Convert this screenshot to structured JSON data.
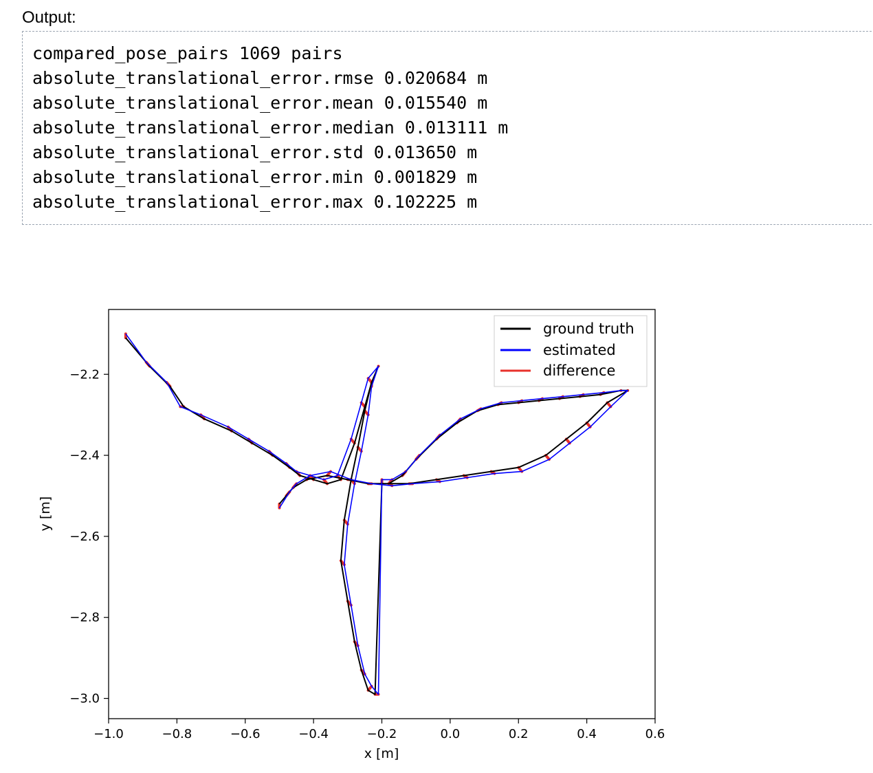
{
  "output_label": "Output:",
  "output_lines": [
    "compared_pose_pairs 1069 pairs",
    "absolute_translational_error.rmse 0.020684 m",
    "absolute_translational_error.mean 0.015540 m",
    "absolute_translational_error.median 0.013111 m",
    "absolute_translational_error.std 0.013650 m",
    "absolute_translational_error.min 0.001829 m",
    "absolute_translational_error.max 0.102225 m"
  ],
  "chart_data": {
    "type": "line",
    "xlabel": "x [m]",
    "ylabel": "y [m]",
    "xlim": [
      -1.0,
      0.6
    ],
    "ylim": [
      -3.05,
      -2.04
    ],
    "xticks": [
      -1.0,
      -0.8,
      -0.6,
      -0.4,
      -0.2,
      0.0,
      0.2,
      0.4,
      0.6
    ],
    "yticks": [
      -2.2,
      -2.4,
      -2.6,
      -2.8,
      -3.0
    ],
    "xtick_labels": [
      "−1.0",
      "−0.8",
      "−0.6",
      "−0.4",
      "−0.2",
      "0.0",
      "0.2",
      "0.4",
      "0.6"
    ],
    "ytick_labels": [
      "−2.2",
      "−2.4",
      "−2.6",
      "−2.8",
      "−3.0"
    ],
    "grid": false,
    "legend_position": "top-right",
    "series": [
      {
        "name": "ground truth",
        "color": "#000000",
        "x": [
          -0.95,
          -0.88,
          -0.82,
          -0.78,
          -0.72,
          -0.64,
          -0.58,
          -0.52,
          -0.47,
          -0.44,
          -0.4,
          -0.36,
          -0.32,
          -0.28,
          -0.25,
          -0.23,
          -0.21,
          -0.23,
          -0.25,
          -0.27,
          -0.29,
          -0.31,
          -0.32,
          -0.3,
          -0.28,
          -0.26,
          -0.24,
          -0.22,
          -0.2,
          -0.18,
          -0.14,
          -0.1,
          -0.04,
          0.02,
          0.08,
          0.14,
          0.2,
          0.26,
          0.32,
          0.38,
          0.44,
          0.5,
          0.52,
          0.46,
          0.4,
          0.34,
          0.28,
          0.2,
          0.12,
          0.04,
          -0.04,
          -0.12,
          -0.18,
          -0.24,
          -0.3,
          -0.36,
          -0.42,
          -0.46,
          -0.48,
          -0.5
        ],
        "y": [
          -2.11,
          -2.18,
          -2.23,
          -2.28,
          -2.31,
          -2.34,
          -2.37,
          -2.4,
          -2.43,
          -2.45,
          -2.46,
          -2.47,
          -2.46,
          -2.37,
          -2.28,
          -2.22,
          -2.18,
          -2.22,
          -2.29,
          -2.38,
          -2.46,
          -2.56,
          -2.66,
          -2.76,
          -2.86,
          -2.93,
          -2.98,
          -2.99,
          -2.47,
          -2.47,
          -2.45,
          -2.41,
          -2.36,
          -2.32,
          -2.29,
          -2.275,
          -2.27,
          -2.265,
          -2.26,
          -2.255,
          -2.25,
          -2.24,
          -2.24,
          -2.27,
          -2.32,
          -2.36,
          -2.4,
          -2.43,
          -2.44,
          -2.45,
          -2.46,
          -2.47,
          -2.47,
          -2.47,
          -2.46,
          -2.45,
          -2.46,
          -2.48,
          -2.5,
          -2.52
        ]
      },
      {
        "name": "estimated",
        "color": "#0000ff",
        "x": [
          -0.95,
          -0.89,
          -0.83,
          -0.79,
          -0.73,
          -0.65,
          -0.59,
          -0.53,
          -0.48,
          -0.45,
          -0.41,
          -0.37,
          -0.33,
          -0.29,
          -0.26,
          -0.24,
          -0.21,
          -0.23,
          -0.24,
          -0.26,
          -0.28,
          -0.3,
          -0.31,
          -0.29,
          -0.27,
          -0.25,
          -0.23,
          -0.21,
          -0.2,
          -0.17,
          -0.13,
          -0.09,
          -0.03,
          0.03,
          0.09,
          0.15,
          0.21,
          0.27,
          0.33,
          0.39,
          0.45,
          0.5,
          0.52,
          0.47,
          0.41,
          0.35,
          0.29,
          0.21,
          0.13,
          0.05,
          -0.03,
          -0.11,
          -0.17,
          -0.23,
          -0.29,
          -0.35,
          -0.41,
          -0.45,
          -0.47,
          -0.5
        ],
        "y": [
          -2.1,
          -2.17,
          -2.22,
          -2.28,
          -2.3,
          -2.33,
          -2.36,
          -2.39,
          -2.42,
          -2.44,
          -2.45,
          -2.46,
          -2.45,
          -2.36,
          -2.27,
          -2.21,
          -2.18,
          -2.23,
          -2.3,
          -2.39,
          -2.47,
          -2.57,
          -2.67,
          -2.77,
          -2.87,
          -2.94,
          -2.97,
          -2.99,
          -2.46,
          -2.46,
          -2.44,
          -2.4,
          -2.35,
          -2.31,
          -2.285,
          -2.27,
          -2.265,
          -2.26,
          -2.255,
          -2.25,
          -2.245,
          -2.24,
          -2.24,
          -2.28,
          -2.33,
          -2.37,
          -2.41,
          -2.44,
          -2.445,
          -2.455,
          -2.465,
          -2.47,
          -2.475,
          -2.47,
          -2.46,
          -2.44,
          -2.45,
          -2.47,
          -2.49,
          -2.53
        ]
      }
    ]
  }
}
